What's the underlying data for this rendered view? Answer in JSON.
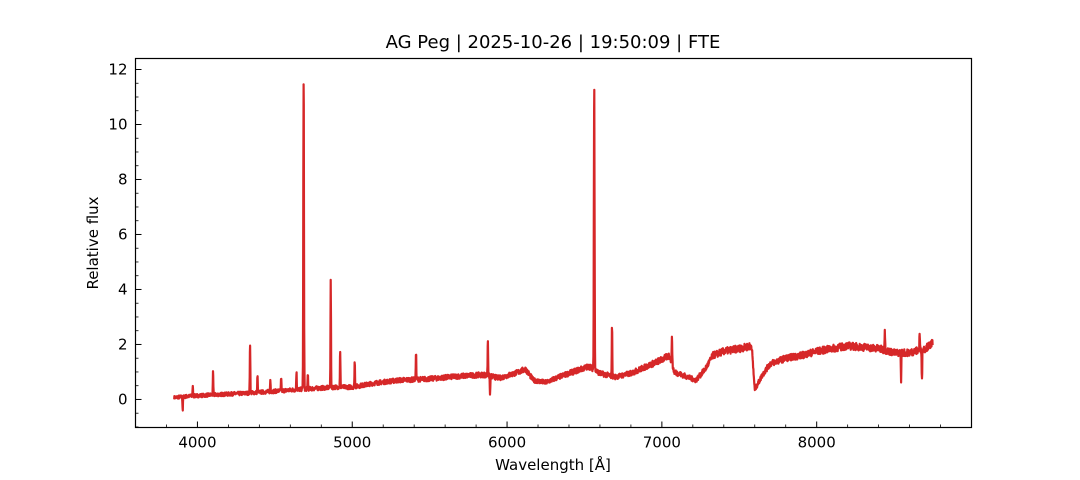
{
  "chart_data": {
    "type": "line",
    "title": "AG Peg | 2025-10-26 | 19:50:09 | FTE",
    "xlabel": "Wavelength [Å]",
    "ylabel": "Relative flux",
    "xlim": [
      3600,
      9000
    ],
    "ylim": [
      -1.02,
      12.4
    ],
    "xticks": [
      4000,
      5000,
      6000,
      7000,
      8000
    ],
    "xtick_labels": [
      "4000",
      "5000",
      "6000",
      "7000",
      "8000"
    ],
    "xminor_step": 200,
    "yticks": [
      0,
      2,
      4,
      6,
      8,
      10,
      12
    ],
    "ytick_labels": [
      "0",
      "2",
      "4",
      "6",
      "8",
      "10",
      "12"
    ],
    "yminor_step": 0.5,
    "grid": false,
    "line_color": "#d62728",
    "continuum": [
      [
        3850,
        0.07
      ],
      [
        3950,
        0.12
      ],
      [
        4100,
        0.17
      ],
      [
        4300,
        0.22
      ],
      [
        4500,
        0.3
      ],
      [
        4700,
        0.38
      ],
      [
        4900,
        0.45
      ],
      [
        5000,
        0.45
      ],
      [
        5150,
        0.6
      ],
      [
        5300,
        0.7
      ],
      [
        5500,
        0.75
      ],
      [
        5700,
        0.85
      ],
      [
        5850,
        0.9
      ],
      [
        5950,
        0.78
      ],
      [
        6050,
        0.95
      ],
      [
        6120,
        1.1
      ],
      [
        6170,
        0.7
      ],
      [
        6250,
        0.62
      ],
      [
        6350,
        0.85
      ],
      [
        6450,
        1.05
      ],
      [
        6530,
        1.2
      ],
      [
        6600,
        0.95
      ],
      [
        6700,
        0.82
      ],
      [
        6800,
        0.95
      ],
      [
        6900,
        1.2
      ],
      [
        7000,
        1.45
      ],
      [
        7050,
        1.6
      ],
      [
        7080,
        1.0
      ],
      [
        7150,
        0.85
      ],
      [
        7220,
        0.7
      ],
      [
        7280,
        1.1
      ],
      [
        7330,
        1.6
      ],
      [
        7400,
        1.75
      ],
      [
        7500,
        1.85
      ],
      [
        7580,
        1.95
      ],
      [
        7600,
        0.35
      ],
      [
        7650,
        0.9
      ],
      [
        7700,
        1.3
      ],
      [
        7800,
        1.5
      ],
      [
        7900,
        1.6
      ],
      [
        8000,
        1.75
      ],
      [
        8100,
        1.85
      ],
      [
        8200,
        1.95
      ],
      [
        8300,
        1.9
      ],
      [
        8400,
        1.85
      ],
      [
        8500,
        1.7
      ],
      [
        8600,
        1.7
      ],
      [
        8700,
        1.85
      ],
      [
        8750,
        2.05
      ]
    ],
    "lines": [
      [
        3905,
        -0.4
      ],
      [
        3970,
        0.45
      ],
      [
        4101,
        1.0
      ],
      [
        4340,
        2.1
      ],
      [
        4388,
        0.85
      ],
      [
        4471,
        0.7
      ],
      [
        4541,
        0.8
      ],
      [
        4640,
        1.05
      ],
      [
        4686,
        11.8
      ],
      [
        4713,
        0.95
      ],
      [
        4861,
        4.4
      ],
      [
        4922,
        1.75
      ],
      [
        5016,
        1.4
      ],
      [
        5412,
        1.75
      ],
      [
        5876,
        2.2
      ],
      [
        5890,
        0.15
      ],
      [
        6563,
        11.6
      ],
      [
        6678,
        2.75
      ],
      [
        7065,
        2.4
      ],
      [
        8440,
        2.6
      ],
      [
        8545,
        0.7
      ],
      [
        8665,
        2.4
      ],
      [
        8680,
        0.65
      ]
    ]
  }
}
